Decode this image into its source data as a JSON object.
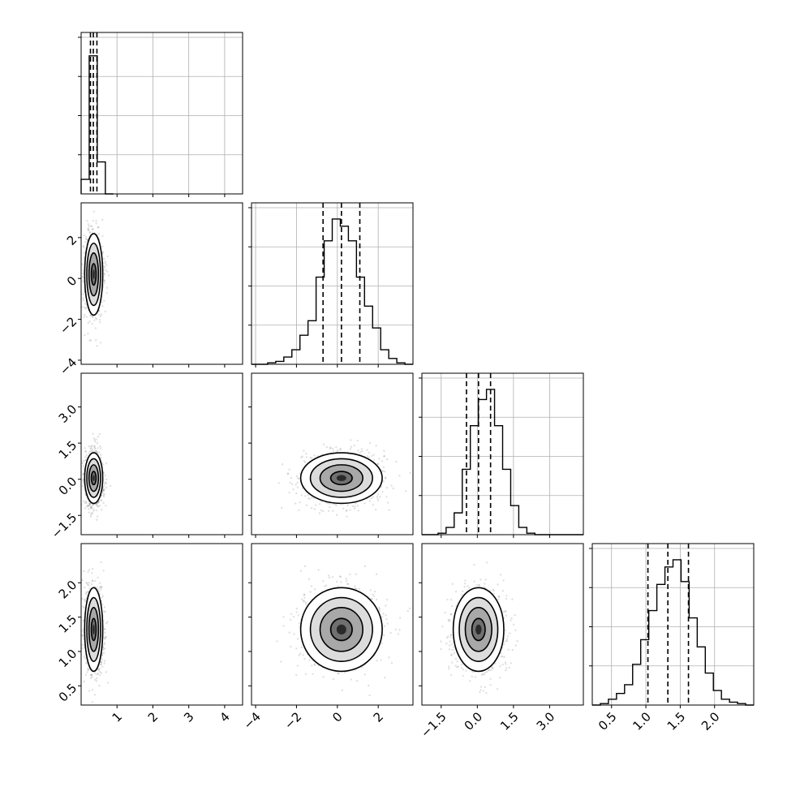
{
  "chart_data": {
    "type": "corner",
    "n_params": 4,
    "ranges": [
      [
        0.0,
        4.5
      ],
      [
        -4.2,
        3.7
      ],
      [
        -2.3,
        4.4
      ],
      [
        0.22,
        2.57
      ]
    ],
    "ticks": [
      [
        1,
        2,
        3,
        4
      ],
      [
        -4,
        -2,
        0,
        2
      ],
      [
        -1.5,
        0.0,
        1.5,
        3.0
      ],
      [
        0.5,
        1.0,
        1.5,
        2.0
      ]
    ],
    "tick_labels": [
      [
        "1",
        "2",
        "3",
        "4"
      ],
      [
        "−4",
        "−2",
        "0",
        "2"
      ],
      [
        "−1.5",
        "0.0",
        "1.5",
        "3.0"
      ],
      [
        "0.5",
        "1.0",
        "1.5",
        "2.0"
      ]
    ],
    "quantiles": [
      [
        0.26,
        0.34,
        0.44
      ],
      [
        -0.7,
        0.2,
        1.1
      ],
      [
        -0.45,
        0.05,
        0.55
      ],
      [
        1.03,
        1.32,
        1.62
      ]
    ],
    "histograms": [
      {
        "bins": [
          0.0,
          0.225,
          0.45,
          0.675,
          0.9
        ],
        "counts": [
          0.1,
          0.95,
          0.22,
          0.0
        ]
      },
      {
        "bins": [
          -4.2,
          -3.805,
          -3.41,
          -3.015,
          -2.62,
          -2.225,
          -1.83,
          -1.435,
          -1.04,
          -0.645,
          -0.25,
          0.145,
          0.54,
          0.935,
          1.33,
          1.725,
          2.12,
          2.515,
          2.91,
          3.305,
          3.7
        ],
        "counts": [
          0.0,
          0.0,
          0.01,
          0.02,
          0.05,
          0.1,
          0.2,
          0.3,
          0.6,
          0.85,
          1.0,
          0.95,
          0.85,
          0.6,
          0.4,
          0.25,
          0.1,
          0.04,
          0.01,
          0.0
        ]
      },
      {
        "bins": [
          -2.3,
          -1.965,
          -1.63,
          -1.295,
          -0.96,
          -0.625,
          -0.29,
          0.045,
          0.38,
          0.715,
          1.05,
          1.385,
          1.72,
          2.055,
          2.39,
          2.725,
          3.06,
          3.395,
          3.73,
          4.065,
          4.4
        ],
        "counts": [
          0.0,
          0.0,
          0.01,
          0.05,
          0.15,
          0.45,
          0.75,
          0.93,
          1.0,
          0.75,
          0.45,
          0.2,
          0.05,
          0.01,
          0.0,
          0.0,
          0.0,
          0.0,
          0.0,
          0.0
        ]
      },
      {
        "bins": [
          0.22,
          0.3375,
          0.455,
          0.5725,
          0.69,
          0.8075,
          0.925,
          1.0425,
          1.16,
          1.2775,
          1.395,
          1.5125,
          1.63,
          1.7475,
          1.865,
          1.9825,
          2.1,
          2.2175,
          2.335,
          2.4525,
          2.57
        ],
        "counts": [
          0.0,
          0.01,
          0.04,
          0.08,
          0.14,
          0.28,
          0.45,
          0.65,
          0.83,
          0.95,
          1.0,
          0.85,
          0.6,
          0.4,
          0.22,
          0.1,
          0.04,
          0.02,
          0.01,
          0.0
        ]
      }
    ],
    "posterior": {
      "means": [
        0.35,
        0.2,
        0.05,
        1.32
      ],
      "stds": [
        0.12,
        0.95,
        0.5,
        0.29
      ]
    }
  }
}
